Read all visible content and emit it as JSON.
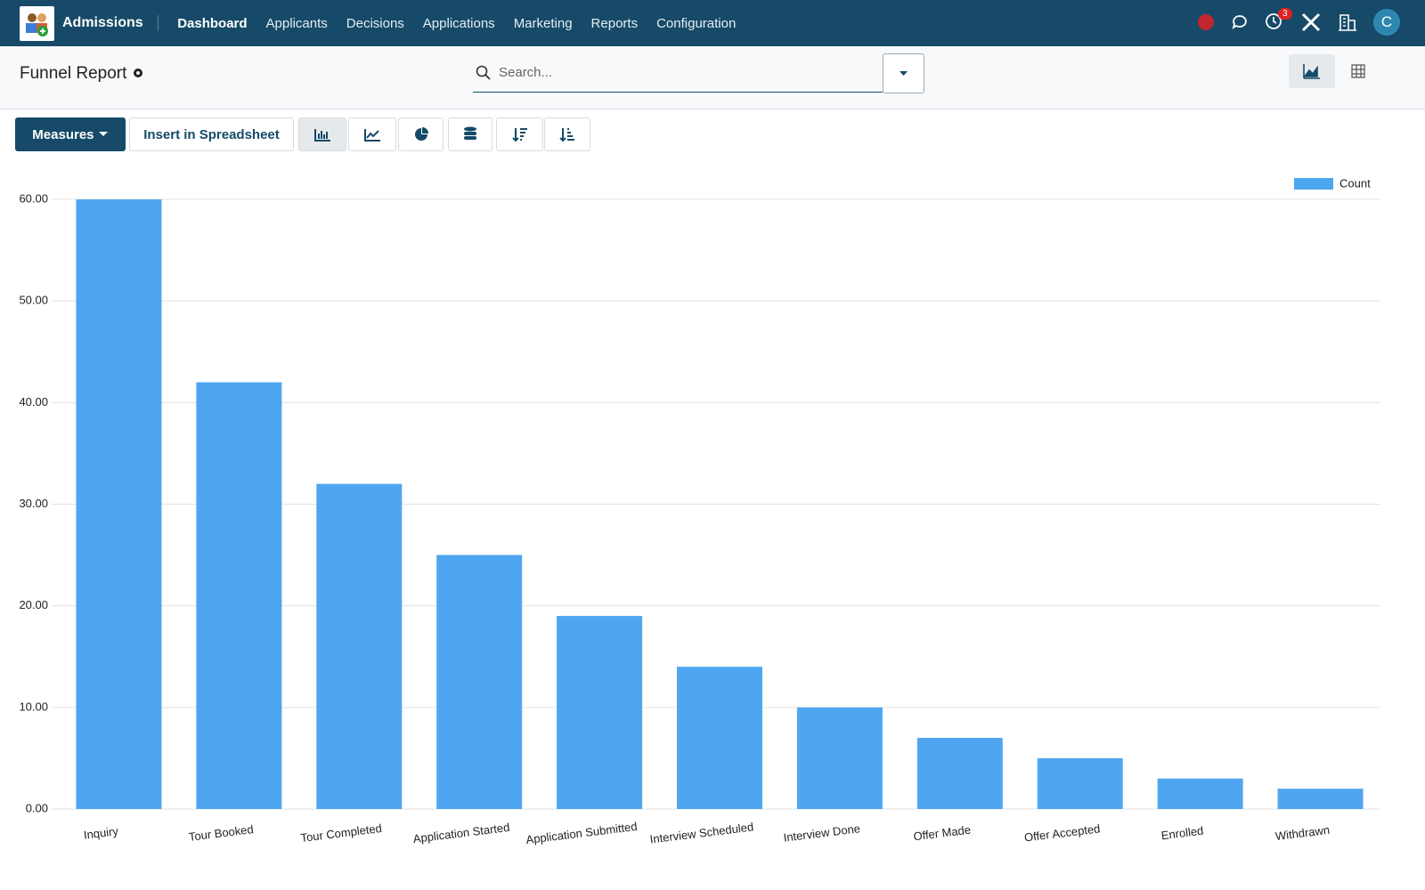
{
  "navbar": {
    "app": "Admissions",
    "menu": [
      "Dashboard",
      "Applicants",
      "Decisions",
      "Applications",
      "Marketing",
      "Reports",
      "Configuration"
    ],
    "notification_count": 3,
    "avatar": "C"
  },
  "control_panel": {
    "title": "Funnel Report",
    "search_placeholder": "Search...",
    "measures": "Measures",
    "insert": "Insert in Spreadsheet"
  },
  "chart_data": {
    "type": "bar",
    "categories": [
      "Inquiry",
      "Tour Booked",
      "Tour Completed",
      "Application Started",
      "Application Submitted",
      "Interview Scheduled",
      "Interview Done",
      "Offer Made",
      "Offer Accepted",
      "Enrolled",
      "Withdrawn"
    ],
    "series": [
      {
        "name": "Count",
        "color": "#4fa6f0",
        "values": [
          60,
          42,
          32,
          25,
          19,
          14,
          10,
          7,
          5,
          3,
          2
        ]
      }
    ],
    "ylim": [
      0,
      60
    ],
    "yticks": [
      {
        "value": 0,
        "label": "0.00"
      },
      {
        "value": 10,
        "label": "10.00"
      },
      {
        "value": 20,
        "label": "20.00"
      },
      {
        "value": 30,
        "label": "30.00"
      },
      {
        "value": 40,
        "label": "40.00"
      },
      {
        "value": 50,
        "label": "50.00"
      },
      {
        "value": 60,
        "label": "60.00"
      }
    ],
    "grid": true,
    "legend": "top-right"
  }
}
